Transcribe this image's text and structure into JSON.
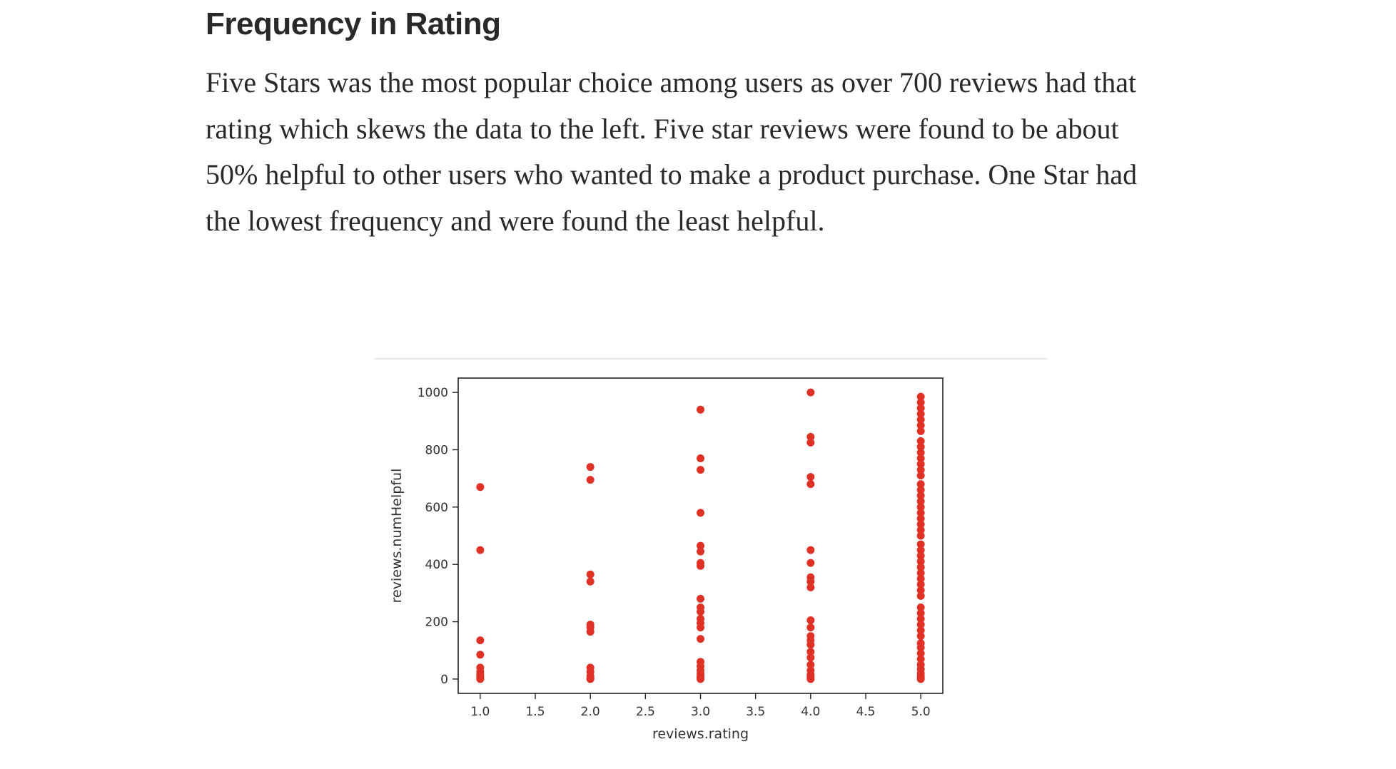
{
  "article": {
    "title": "Frequency in Rating",
    "paragraph": "Five Stars was the most popular choice among users as over 700 reviews had that rating which skews the data to the left. Five star reviews were found to be about 50% helpful to other users who wanted to make a product purchase. One Star had the lowest frequency and were found the least helpful."
  },
  "chart_data": {
    "type": "scatter",
    "title": "",
    "xlabel": "reviews.rating",
    "ylabel": "reviews.numHelpful",
    "xlim": [
      0.8,
      5.2
    ],
    "ylim": [
      -50,
      1050
    ],
    "x_ticks": [
      1.0,
      1.5,
      2.0,
      2.5,
      3.0,
      3.5,
      4.0,
      4.5,
      5.0
    ],
    "x_tick_labels": [
      "1.0",
      "1.5",
      "2.0",
      "2.5",
      "3.0",
      "3.5",
      "4.0",
      "4.5",
      "5.0"
    ],
    "y_ticks": [
      0,
      200,
      400,
      600,
      800,
      1000
    ],
    "y_tick_labels": [
      "0",
      "200",
      "400",
      "600",
      "800",
      "1000"
    ],
    "grid": false,
    "marker_color": "#e03127",
    "points": [
      {
        "x": 1.0,
        "y": 670
      },
      {
        "x": 1.0,
        "y": 450
      },
      {
        "x": 1.0,
        "y": 135
      },
      {
        "x": 1.0,
        "y": 85
      },
      {
        "x": 1.0,
        "y": 40
      },
      {
        "x": 1.0,
        "y": 25
      },
      {
        "x": 1.0,
        "y": 15
      },
      {
        "x": 1.0,
        "y": 8
      },
      {
        "x": 1.0,
        "y": 3
      },
      {
        "x": 1.0,
        "y": 0
      },
      {
        "x": 2.0,
        "y": 740
      },
      {
        "x": 2.0,
        "y": 695
      },
      {
        "x": 2.0,
        "y": 365
      },
      {
        "x": 2.0,
        "y": 340
      },
      {
        "x": 2.0,
        "y": 190
      },
      {
        "x": 2.0,
        "y": 180
      },
      {
        "x": 2.0,
        "y": 165
      },
      {
        "x": 2.0,
        "y": 40
      },
      {
        "x": 2.0,
        "y": 25
      },
      {
        "x": 2.0,
        "y": 10
      },
      {
        "x": 2.0,
        "y": 3
      },
      {
        "x": 2.0,
        "y": 0
      },
      {
        "x": 3.0,
        "y": 940
      },
      {
        "x": 3.0,
        "y": 770
      },
      {
        "x": 3.0,
        "y": 730
      },
      {
        "x": 3.0,
        "y": 580
      },
      {
        "x": 3.0,
        "y": 465
      },
      {
        "x": 3.0,
        "y": 445
      },
      {
        "x": 3.0,
        "y": 405
      },
      {
        "x": 3.0,
        "y": 395
      },
      {
        "x": 3.0,
        "y": 280
      },
      {
        "x": 3.0,
        "y": 250
      },
      {
        "x": 3.0,
        "y": 235
      },
      {
        "x": 3.0,
        "y": 210
      },
      {
        "x": 3.0,
        "y": 195
      },
      {
        "x": 3.0,
        "y": 180
      },
      {
        "x": 3.0,
        "y": 140
      },
      {
        "x": 3.0,
        "y": 60
      },
      {
        "x": 3.0,
        "y": 45
      },
      {
        "x": 3.0,
        "y": 30
      },
      {
        "x": 3.0,
        "y": 18
      },
      {
        "x": 3.0,
        "y": 8
      },
      {
        "x": 3.0,
        "y": 3
      },
      {
        "x": 3.0,
        "y": 0
      },
      {
        "x": 4.0,
        "y": 1000
      },
      {
        "x": 4.0,
        "y": 845
      },
      {
        "x": 4.0,
        "y": 825
      },
      {
        "x": 4.0,
        "y": 705
      },
      {
        "x": 4.0,
        "y": 680
      },
      {
        "x": 4.0,
        "y": 450
      },
      {
        "x": 4.0,
        "y": 405
      },
      {
        "x": 4.0,
        "y": 355
      },
      {
        "x": 4.0,
        "y": 340
      },
      {
        "x": 4.0,
        "y": 320
      },
      {
        "x": 4.0,
        "y": 205
      },
      {
        "x": 4.0,
        "y": 180
      },
      {
        "x": 4.0,
        "y": 150
      },
      {
        "x": 4.0,
        "y": 135
      },
      {
        "x": 4.0,
        "y": 120
      },
      {
        "x": 4.0,
        "y": 95
      },
      {
        "x": 4.0,
        "y": 75
      },
      {
        "x": 4.0,
        "y": 50
      },
      {
        "x": 4.0,
        "y": 30
      },
      {
        "x": 4.0,
        "y": 15
      },
      {
        "x": 4.0,
        "y": 5
      },
      {
        "x": 4.0,
        "y": 0
      },
      {
        "x": 5.0,
        "y": 985
      },
      {
        "x": 5.0,
        "y": 965
      },
      {
        "x": 5.0,
        "y": 945
      },
      {
        "x": 5.0,
        "y": 925
      },
      {
        "x": 5.0,
        "y": 905
      },
      {
        "x": 5.0,
        "y": 885
      },
      {
        "x": 5.0,
        "y": 865
      },
      {
        "x": 5.0,
        "y": 830
      },
      {
        "x": 5.0,
        "y": 810
      },
      {
        "x": 5.0,
        "y": 790
      },
      {
        "x": 5.0,
        "y": 770
      },
      {
        "x": 5.0,
        "y": 750
      },
      {
        "x": 5.0,
        "y": 730
      },
      {
        "x": 5.0,
        "y": 710
      },
      {
        "x": 5.0,
        "y": 680
      },
      {
        "x": 5.0,
        "y": 660
      },
      {
        "x": 5.0,
        "y": 640
      },
      {
        "x": 5.0,
        "y": 620
      },
      {
        "x": 5.0,
        "y": 600
      },
      {
        "x": 5.0,
        "y": 580
      },
      {
        "x": 5.0,
        "y": 560
      },
      {
        "x": 5.0,
        "y": 540
      },
      {
        "x": 5.0,
        "y": 520
      },
      {
        "x": 5.0,
        "y": 500
      },
      {
        "x": 5.0,
        "y": 470
      },
      {
        "x": 5.0,
        "y": 450
      },
      {
        "x": 5.0,
        "y": 430
      },
      {
        "x": 5.0,
        "y": 410
      },
      {
        "x": 5.0,
        "y": 390
      },
      {
        "x": 5.0,
        "y": 370
      },
      {
        "x": 5.0,
        "y": 350
      },
      {
        "x": 5.0,
        "y": 330
      },
      {
        "x": 5.0,
        "y": 310
      },
      {
        "x": 5.0,
        "y": 290
      },
      {
        "x": 5.0,
        "y": 250
      },
      {
        "x": 5.0,
        "y": 230
      },
      {
        "x": 5.0,
        "y": 210
      },
      {
        "x": 5.0,
        "y": 190
      },
      {
        "x": 5.0,
        "y": 170
      },
      {
        "x": 5.0,
        "y": 150
      },
      {
        "x": 5.0,
        "y": 125
      },
      {
        "x": 5.0,
        "y": 110
      },
      {
        "x": 5.0,
        "y": 90
      },
      {
        "x": 5.0,
        "y": 70
      },
      {
        "x": 5.0,
        "y": 50
      },
      {
        "x": 5.0,
        "y": 35
      },
      {
        "x": 5.0,
        "y": 20
      },
      {
        "x": 5.0,
        "y": 10
      },
      {
        "x": 5.0,
        "y": 3
      },
      {
        "x": 5.0,
        "y": 0
      }
    ]
  }
}
